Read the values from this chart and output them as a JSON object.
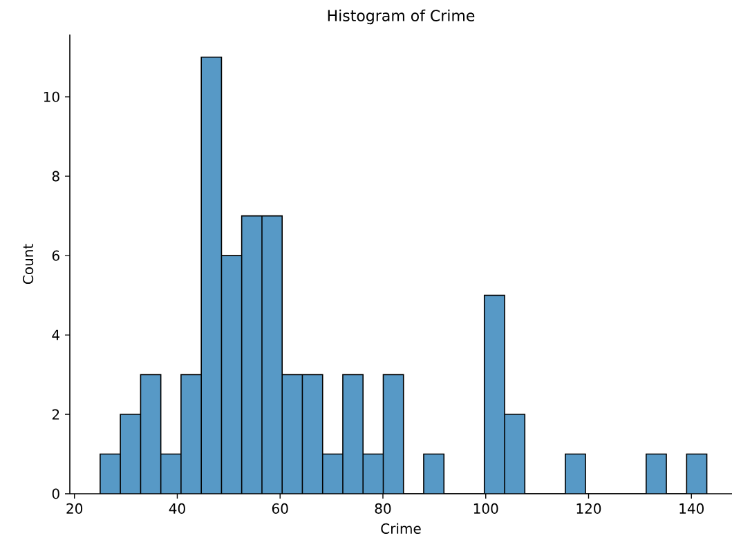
{
  "chart_data": {
    "type": "histogram",
    "title": "Histogram of Crime",
    "xlabel": "Crime",
    "ylabel": "Count",
    "bins": [
      25,
      28.93,
      32.87,
      36.8,
      40.73,
      44.67,
      48.6,
      52.53,
      56.47,
      60.4,
      64.33,
      68.27,
      72.2,
      76.13,
      80.07,
      84,
      87.93,
      91.87,
      95.8,
      99.73,
      103.67,
      107.6,
      111.53,
      115.47,
      119.4,
      123.33,
      127.27,
      131.2,
      135.13,
      139.07,
      143
    ],
    "values": [
      1,
      2,
      3,
      1,
      3,
      11,
      6,
      7,
      7,
      3,
      3,
      1,
      3,
      1,
      3,
      0,
      1,
      0,
      0,
      5,
      2,
      0,
      0,
      1,
      0,
      0,
      0,
      1,
      0,
      1
    ],
    "color": "#5799c6",
    "xlim": [
      19.1,
      147.9
    ],
    "ylim": [
      0,
      11.57
    ],
    "xticks": [
      20,
      40,
      60,
      80,
      100,
      120,
      140
    ],
    "yticks": [
      0,
      2,
      4,
      6,
      8,
      10
    ],
    "grid": false
  }
}
